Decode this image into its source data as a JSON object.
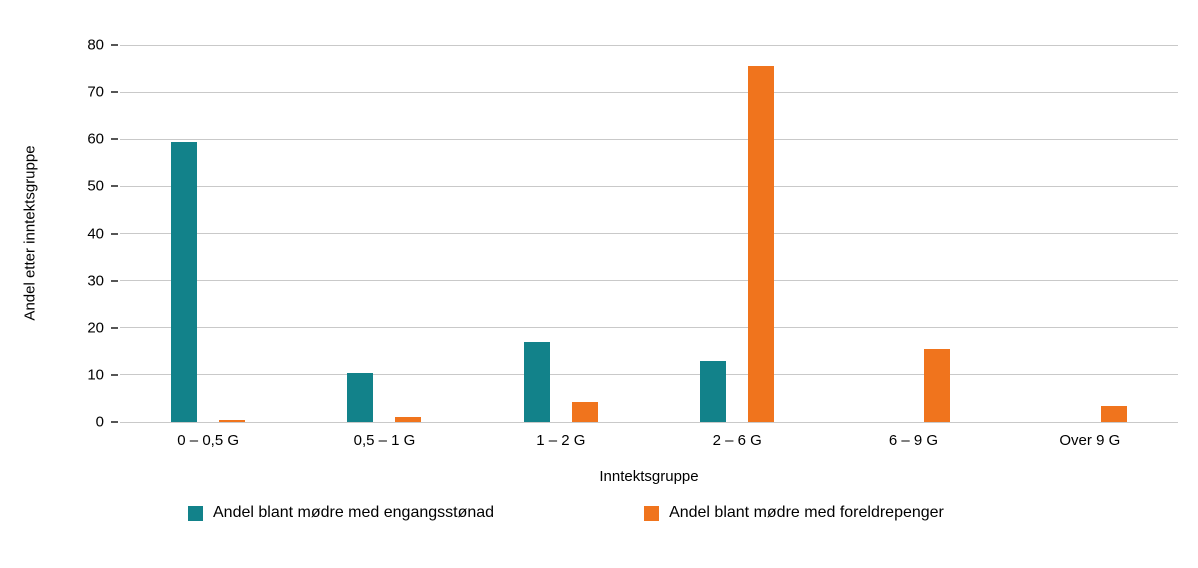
{
  "chart_data": {
    "type": "bar",
    "categories": [
      "0 – 0,5 G",
      "0,5 – 1 G",
      "1 – 2 G",
      "2 – 6 G",
      "6 – 9 G",
      "Over 9 G"
    ],
    "series": [
      {
        "name": "Andel blant mødre med engangsstønad",
        "color": "#12828a",
        "values": [
          59.5,
          10.5,
          17,
          13,
          0,
          0
        ]
      },
      {
        "name": "Andel blant mødre med foreldrepenger",
        "color": "#f0741d",
        "values": [
          0.5,
          1,
          4.2,
          75.5,
          15.5,
          3.5
        ]
      }
    ],
    "title": "",
    "xlabel": "Inntektsgruppe",
    "ylabel": "Andel etter inntektsgruppe",
    "ylim": [
      0,
      80
    ],
    "yticks": [
      0,
      10,
      20,
      30,
      40,
      50,
      60,
      70,
      80
    ],
    "grid": true,
    "legend_position": "bottom"
  }
}
